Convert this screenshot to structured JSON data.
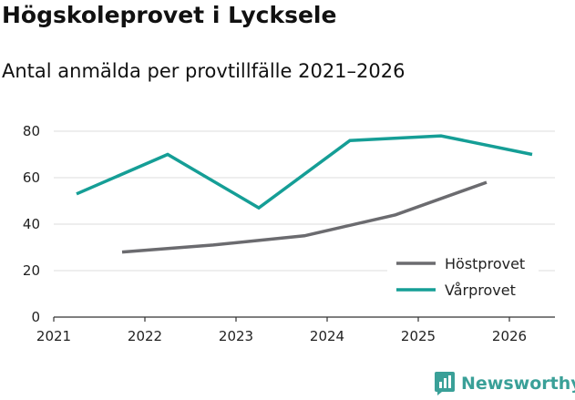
{
  "title": "Högskoleprovet i Lycksele",
  "subtitle": "Antal anmälda per provtillfälle 2021–2026",
  "brand": "Newsworthy",
  "chart_data": {
    "type": "line",
    "xlim": [
      2021,
      2026.5
    ],
    "ylim": [
      0,
      80
    ],
    "x_ticks": [
      2021,
      2022,
      2023,
      2024,
      2025,
      2026
    ],
    "y_ticks": [
      0,
      20,
      40,
      60,
      80
    ],
    "grid": true,
    "legend_position": "bottom-right",
    "series": [
      {
        "name": "Höstprovet",
        "color": "#6b6b6f",
        "x": [
          2021.75,
          2022.75,
          2023.75,
          2024.75,
          2025.75
        ],
        "values": [
          28,
          31,
          35,
          44,
          58
        ]
      },
      {
        "name": "Vårprovet",
        "color": "#159e96",
        "x": [
          2021.25,
          2022.25,
          2023.25,
          2024.25,
          2025.25,
          2026.25
        ],
        "values": [
          53,
          70,
          47,
          76,
          78,
          70
        ]
      }
    ]
  }
}
